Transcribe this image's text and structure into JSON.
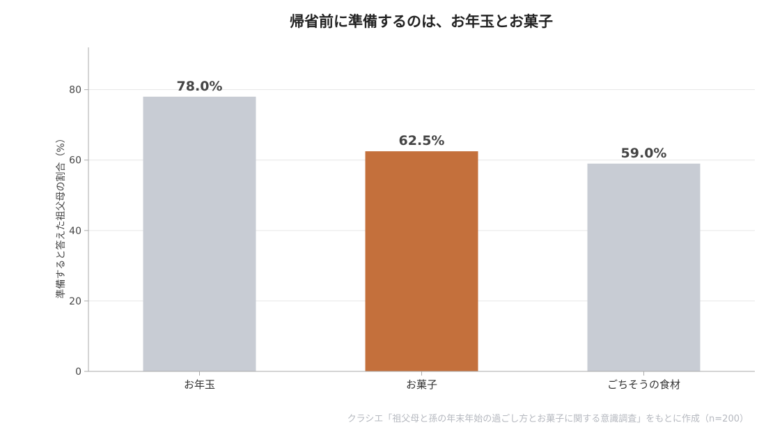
{
  "chart_data": {
    "type": "bar",
    "title": "帰省前に準備するのは、お年玉とお菓子",
    "ylabel": "準備すると答えた祖父母の割合（%）",
    "xlabel": "",
    "categories": [
      "お年玉",
      "お菓子",
      "ごちそうの食材"
    ],
    "values": [
      78.0,
      62.5,
      59.0
    ],
    "value_labels": [
      "78.0%",
      "62.5%",
      "59.0%"
    ],
    "highlight_index": 1,
    "colors": {
      "default_bar": "#c8ccd4",
      "highlight_bar": "#c4703c",
      "grid": "#e6e6e6",
      "axis": "#aaaaaa"
    },
    "ylim": [
      0,
      92
    ],
    "yticks": [
      0,
      20,
      40,
      60,
      80
    ],
    "grid": true,
    "source": "クラシエ「祖父母と孫の年末年始の過ごし方とお菓子に関する意識調査」をもとに作成（n=200）"
  }
}
